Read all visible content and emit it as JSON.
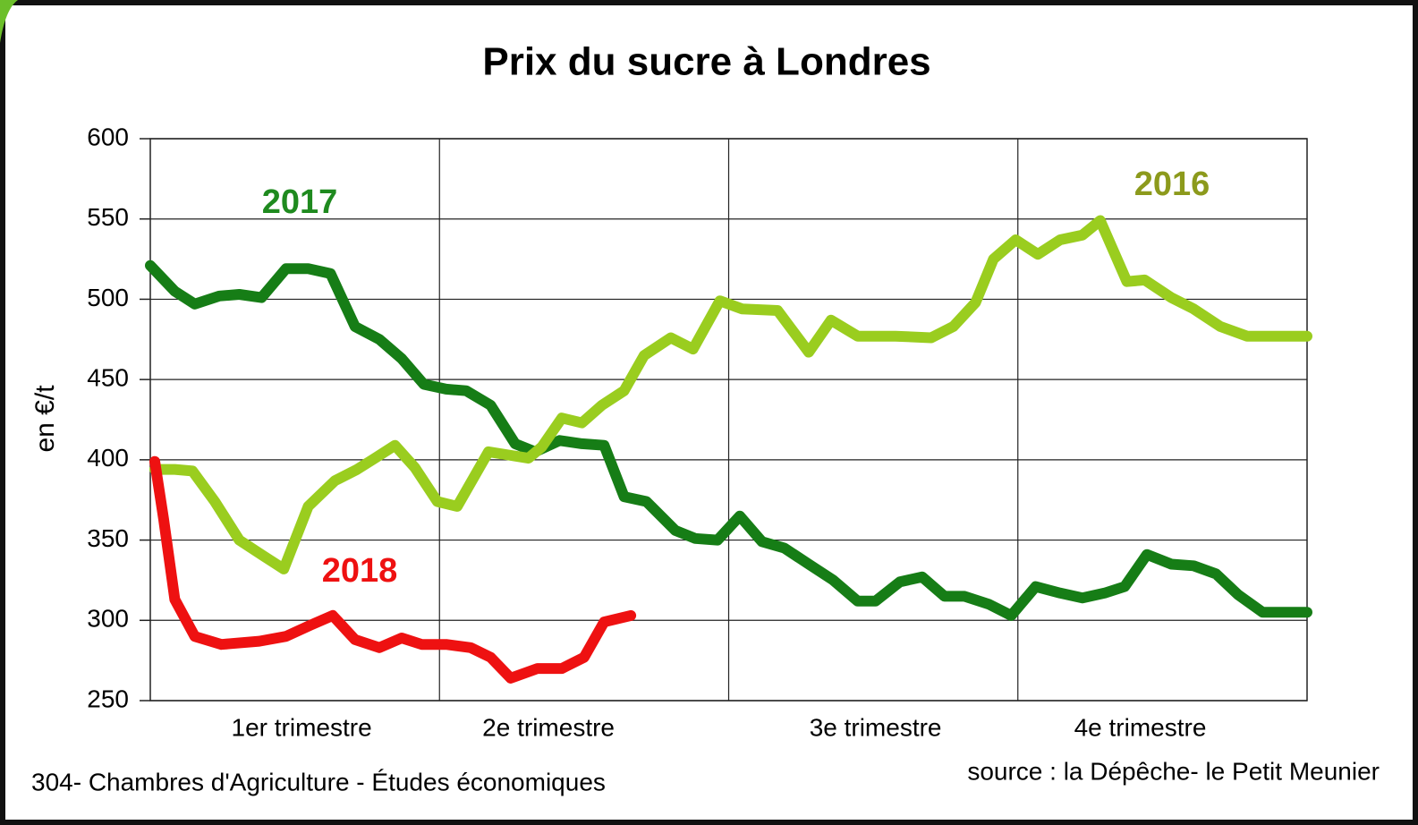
{
  "chart_data": {
    "type": "line",
    "title": "Prix du sucre à Londres",
    "ylabel": "en €/t",
    "footer_left": "304- Chambres d'Agriculture  - Études économiques",
    "footer_right": "source :  la Dépêche- le Petit Meunier",
    "xlim": [
      0,
      52
    ],
    "ylim": [
      250,
      600
    ],
    "yticks": [
      250,
      300,
      350,
      400,
      450,
      500,
      550,
      600
    ],
    "xgrid": [
      13,
      26,
      39
    ],
    "xticks": [
      {
        "value": 6.8,
        "label": "1er trimestre"
      },
      {
        "value": 17.9,
        "label": "2e trimestre"
      },
      {
        "value": 32.6,
        "label": "3e trimestre"
      },
      {
        "value": 44.5,
        "label": "4e trimestre"
      }
    ],
    "grid": true,
    "series": [
      {
        "name": "2017",
        "color": "#167d16",
        "label_color": "#1f8a1f",
        "x": [
          0,
          1.1,
          2,
          3.1,
          4,
          5,
          6.1,
          7.1,
          8.1,
          9.2,
          10.3,
          11.3,
          12.3,
          13.3,
          14.2,
          15.3,
          16.4,
          17.3,
          18.4,
          19.4,
          20.4,
          21.3,
          22.3,
          23.6,
          24.5,
          25.5,
          26.5,
          27.5,
          28.5,
          29.6,
          30.7,
          31.8,
          32.6,
          33.7,
          34.7,
          35.7,
          36.6,
          37.7,
          38.7,
          39.8,
          40.9,
          41.9,
          42.9,
          43.8,
          44.8,
          45.9,
          46.9,
          47.9,
          48.9,
          50,
          52
        ],
        "values": [
          521,
          505,
          497,
          502,
          503,
          501,
          519,
          519,
          516,
          483,
          475,
          463,
          447,
          444,
          443,
          434,
          410,
          405,
          412,
          410,
          409,
          377,
          374,
          356,
          351,
          350,
          365,
          349,
          345,
          335,
          325,
          312,
          312,
          324,
          327,
          315,
          315,
          310,
          303,
          321,
          317,
          314,
          317,
          321,
          341,
          335,
          334,
          329,
          316,
          305,
          305
        ]
      },
      {
        "name": "2016",
        "color": "#9acd1f",
        "label_color": "#8c9a1c",
        "x": [
          0.2,
          1.1,
          1.9,
          2.9,
          4,
          5.1,
          6,
          7.1,
          8.3,
          9.3,
          10.1,
          11,
          11.9,
          12.9,
          13.8,
          15.2,
          16.1,
          17,
          17.6,
          18.5,
          19.4,
          20.3,
          21.3,
          22.2,
          23.4,
          24.4,
          25.6,
          26.6,
          28.2,
          29.6,
          30.6,
          31.8,
          33.5,
          35.1,
          36.1,
          37.1,
          37.9,
          38.9,
          39.9,
          40.9,
          41.9,
          42.7,
          43.9,
          44.7,
          45.9,
          46.9,
          48.1,
          49.3,
          52
        ],
        "values": [
          394,
          394,
          393,
          374,
          350,
          340,
          332,
          371,
          387,
          394,
          401,
          409,
          395,
          374,
          371,
          405,
          403,
          401,
          408,
          426,
          423,
          434,
          443,
          465,
          476,
          469,
          499,
          494,
          493,
          467,
          487,
          477,
          477,
          476,
          483,
          498,
          525,
          537,
          528,
          537,
          540,
          549,
          511,
          512,
          501,
          494,
          483,
          477,
          477
        ]
      },
      {
        "name": "2018",
        "color": "#ee1111",
        "label_color": "#ee1111",
        "x": [
          0.2,
          0.6,
          1.1,
          2,
          3.2,
          4.9,
          6.1,
          7.2,
          8.2,
          9.2,
          10.3,
          11.3,
          12.2,
          13.3,
          14.4,
          15.3,
          16.2,
          17.4,
          18.5,
          19.5,
          20.4,
          21.6
        ],
        "values": [
          399,
          363,
          313,
          290,
          285,
          287,
          290,
          297,
          303,
          288,
          283,
          289,
          285,
          285,
          283,
          277,
          264,
          270,
          270,
          277,
          299,
          303
        ]
      }
    ]
  }
}
